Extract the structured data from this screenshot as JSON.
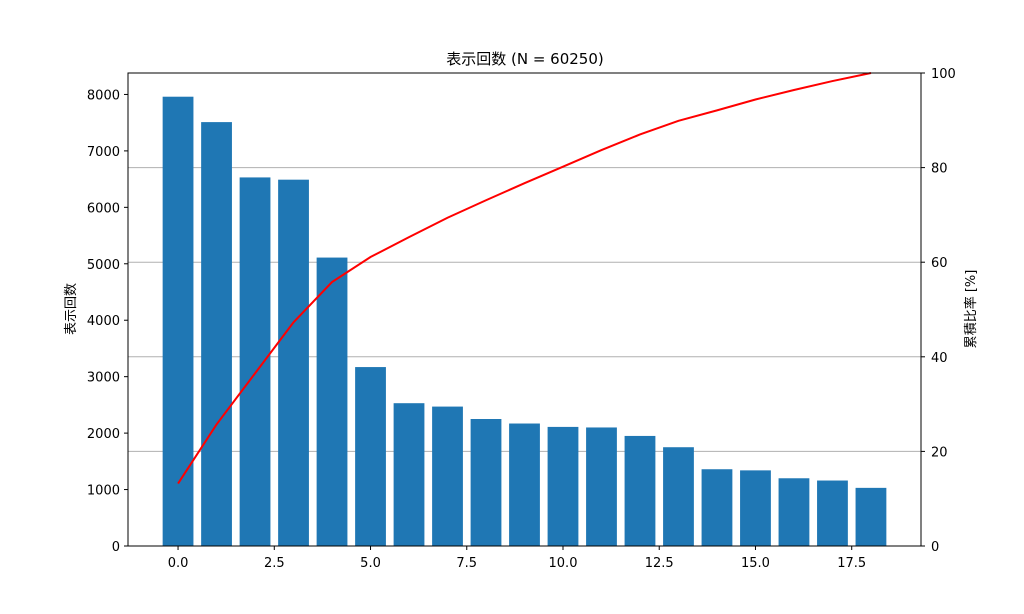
{
  "chart_data": {
    "type": "bar",
    "title": "表示回数 (N = 60250)",
    "ylabel": "表示回数",
    "y2label": "累積比率 [%]",
    "x": [
      0,
      1,
      2,
      3,
      4,
      5,
      6,
      7,
      8,
      9,
      10,
      11,
      12,
      13,
      14,
      15,
      16,
      17,
      18
    ],
    "values": [
      7960,
      7510,
      6530,
      6490,
      5110,
      3170,
      2530,
      2470,
      2250,
      2170,
      2110,
      2100,
      1950,
      1750,
      1360,
      1340,
      1200,
      1160,
      1030
    ],
    "cumulative_percent": [
      13.2,
      25.7,
      36.5,
      47.3,
      55.8,
      61.1,
      65.3,
      69.4,
      73.1,
      76.7,
      80.2,
      83.7,
      87.0,
      89.9,
      92.1,
      94.4,
      96.4,
      98.3,
      100.0
    ],
    "xlim": [
      -1.3,
      19.3
    ],
    "ylim": [
      0,
      8380
    ],
    "y2lim": [
      0,
      100
    ],
    "xticks": [
      "0.0",
      "2.5",
      "5.0",
      "7.5",
      "10.0",
      "12.5",
      "15.0",
      "17.5"
    ],
    "yticks": [
      "0",
      "1000",
      "2000",
      "3000",
      "4000",
      "5000",
      "6000",
      "7000",
      "8000"
    ],
    "y2ticks": [
      "0",
      "20",
      "40",
      "60",
      "80",
      "100"
    ],
    "grid": "horizontal (right axis)",
    "bar_color": "#1f77b4",
    "line_color": "#ff0000"
  }
}
